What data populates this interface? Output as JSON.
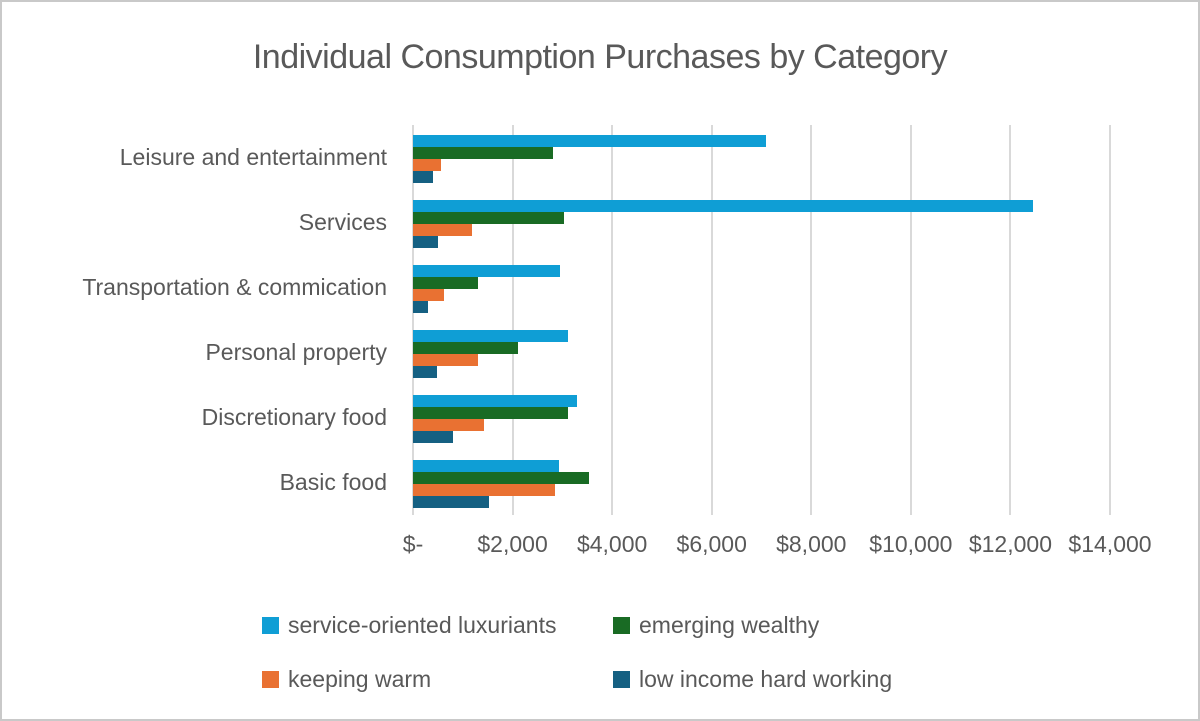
{
  "chart_data": {
    "type": "bar",
    "orientation": "horizontal",
    "title": "Individual Consumption Purchases by Category",
    "categories": [
      "Leisure and entertainment",
      "Services",
      "Transportation & commication",
      "Personal property",
      "Discretionary food",
      "Basic food"
    ],
    "series": [
      {
        "name": "service-oriented luxuriants",
        "color": "#0F9ED5",
        "values": [
          7100,
          12450,
          2950,
          3110,
          3290,
          2930
        ]
      },
      {
        "name": "emerging wealthy",
        "color": "#196B24",
        "values": [
          2820,
          3030,
          1310,
          2100,
          3110,
          3540
        ]
      },
      {
        "name": "keeping warm",
        "color": "#E97132",
        "values": [
          570,
          1180,
          630,
          1310,
          1430,
          2860
        ]
      },
      {
        "name": "low income hard working",
        "color": "#156082",
        "values": [
          410,
          510,
          310,
          490,
          810,
          1530
        ]
      }
    ],
    "xlim": [
      0,
      14000
    ],
    "xtick_step": 2000,
    "xtick_labels": [
      "$-",
      "$2,000",
      "$4,000",
      "$6,000",
      "$8,000",
      "$10,000",
      "$12,000",
      "$14,000"
    ],
    "grid": "vertical",
    "legend_position": "bottom",
    "text_color": "#595959",
    "gridline_color": "#D9D9D9"
  }
}
